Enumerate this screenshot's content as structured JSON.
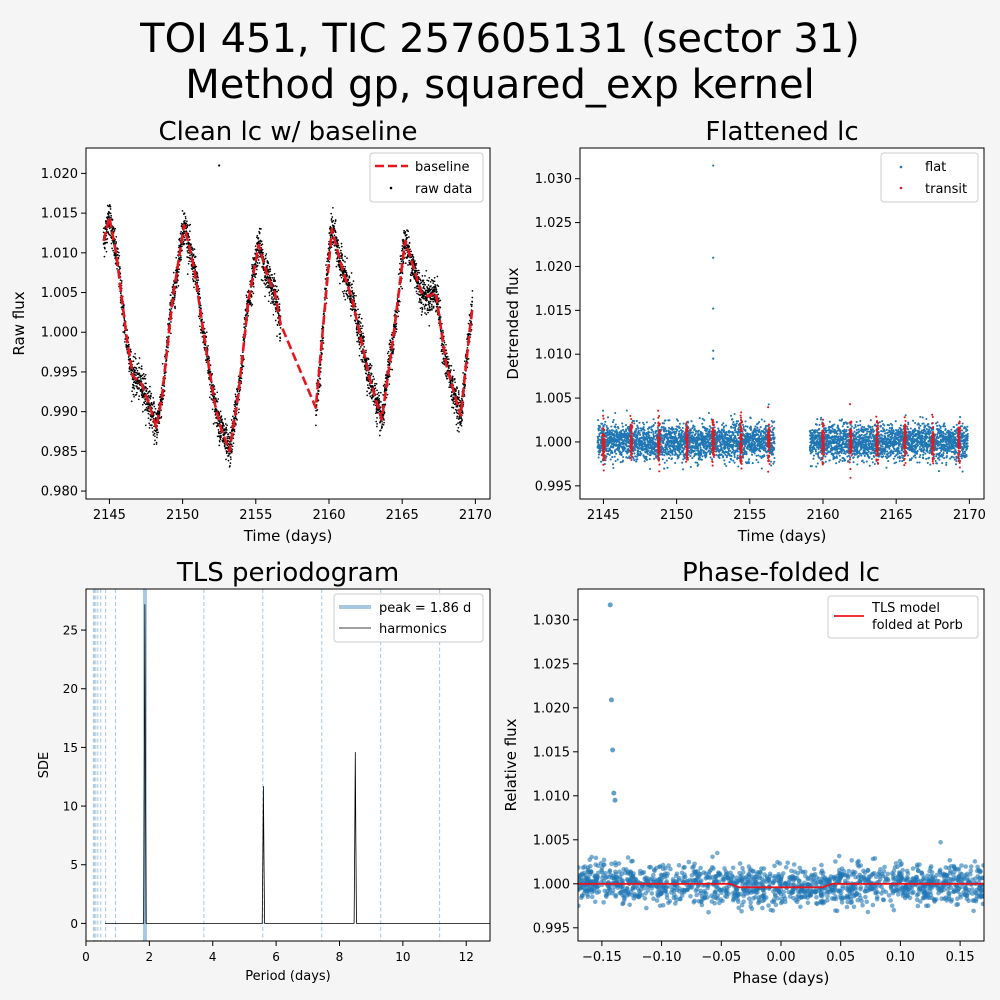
{
  "figure": {
    "title_line1": "TOI 451, TIC 257605131 (sector 31)",
    "title_line2": "Method gp, squared_exp kernel",
    "background": "#f5f5f5"
  },
  "colors": {
    "raw": "#000000",
    "baseline": "#e8141e",
    "flat": "#1f77b4",
    "transit": "#e31a1c",
    "peak": "#a6c8e2",
    "harmonics": "#000000",
    "model": "#e8141e",
    "axes": "#000000"
  },
  "chart_data": [
    {
      "id": "clean",
      "type": "scatter",
      "title": "Clean lc w/ baseline",
      "xlabel": "Time (days)",
      "ylabel": "Raw flux",
      "xlim": [
        2143.4,
        2171.0
      ],
      "ylim": [
        0.979,
        1.0232
      ],
      "xticks": [
        2145,
        2150,
        2155,
        2160,
        2165,
        2170
      ],
      "xtick_labels": [
        "2145",
        "2150",
        "2155",
        "2160",
        "2165",
        "2170"
      ],
      "yticks": [
        0.98,
        0.985,
        0.99,
        0.995,
        1.0,
        1.005,
        1.01,
        1.015,
        1.02
      ],
      "ytick_labels": [
        "0.980",
        "0.985",
        "0.990",
        "0.995",
        "1.000",
        "1.005",
        "1.010",
        "1.015",
        "1.020"
      ],
      "legend": [
        "baseline",
        "raw data"
      ],
      "legend_loc": "upper right",
      "gap": [
        2156.7,
        2159.1
      ],
      "baseline_knots": [
        [
          2144.6,
          1.0115
        ],
        [
          2145.0,
          1.0145
        ],
        [
          2145.5,
          1.0095
        ],
        [
          2146.2,
          0.999
        ],
        [
          2146.6,
          0.9945
        ],
        [
          2147.2,
          0.9935
        ],
        [
          2147.7,
          0.991
        ],
        [
          2148.2,
          0.988
        ],
        [
          2148.6,
          0.992
        ],
        [
          2149.3,
          1.004
        ],
        [
          2150.1,
          1.0135
        ],
        [
          2150.8,
          1.008
        ],
        [
          2151.5,
          0.999
        ],
        [
          2152.2,
          0.991
        ],
        [
          2152.6,
          0.988
        ],
        [
          2153.2,
          0.985
        ],
        [
          2153.8,
          0.992
        ],
        [
          2154.5,
          1.004
        ],
        [
          2155.2,
          1.011
        ],
        [
          2155.8,
          1.007
        ],
        [
          2156.3,
          1.005
        ],
        [
          2156.7,
          1.001
        ],
        [
          2159.1,
          0.9905
        ],
        [
          2160.2,
          1.013
        ],
        [
          2160.9,
          1.008
        ],
        [
          2161.6,
          1.004
        ],
        [
          2162.2,
          0.999
        ],
        [
          2162.8,
          0.994
        ],
        [
          2163.6,
          0.989
        ],
        [
          2164.3,
          0.998
        ],
        [
          2165.2,
          1.0115
        ],
        [
          2165.8,
          1.008
        ],
        [
          2166.3,
          1.005
        ],
        [
          2166.8,
          1.0045
        ],
        [
          2167.3,
          1.005
        ],
        [
          2168.0,
          0.996
        ],
        [
          2168.6,
          0.992
        ],
        [
          2169.0,
          0.9895
        ],
        [
          2169.6,
          1.0
        ],
        [
          2169.8,
          1.003
        ]
      ],
      "outliers": [
        [
          2152.5,
          1.021
        ]
      ]
    },
    {
      "id": "flat",
      "type": "scatter",
      "title": "Flattened lc",
      "xlabel": "Time (days)",
      "ylabel": "Detrended flux",
      "xlim": [
        2143.4,
        2171.0
      ],
      "ylim": [
        0.9935,
        1.0335
      ],
      "xticks": [
        2145,
        2150,
        2155,
        2160,
        2165,
        2170
      ],
      "xtick_labels": [
        "2145",
        "2150",
        "2155",
        "2160",
        "2165",
        "2170"
      ],
      "yticks": [
        0.995,
        1.0,
        1.005,
        1.01,
        1.015,
        1.02,
        1.025,
        1.03
      ],
      "ytick_labels": [
        "0.995",
        "1.000",
        "1.005",
        "1.010",
        "1.015",
        "1.020",
        "1.025",
        "1.030"
      ],
      "legend": [
        "flat",
        "transit"
      ],
      "legend_loc": "upper right",
      "gap": [
        2156.7,
        2159.1
      ],
      "transit_times": [
        2145.0,
        2146.9,
        2148.8,
        2150.7,
        2152.5,
        2154.4,
        2156.3,
        2160.0,
        2161.9,
        2163.7,
        2165.6,
        2167.5,
        2169.3
      ],
      "outliers": [
        [
          2152.5,
          1.0315
        ],
        [
          2152.5,
          1.021
        ],
        [
          2152.5,
          1.0152
        ],
        [
          2152.5,
          1.0104
        ],
        [
          2152.5,
          1.0095
        ]
      ]
    },
    {
      "id": "tls",
      "type": "line",
      "title": "TLS periodogram",
      "xlabel": "Period (days)",
      "ylabel": "SDE",
      "xlim": [
        0,
        12.75
      ],
      "ylim": [
        -1.5,
        28.5
      ],
      "xticks": [
        0,
        2,
        4,
        6,
        8,
        10,
        12
      ],
      "xtick_labels": [
        "0",
        "2",
        "4",
        "6",
        "8",
        "10",
        "12"
      ],
      "yticks": [
        0,
        5,
        10,
        15,
        20,
        25
      ],
      "ytick_labels": [
        "0",
        "5",
        "10",
        "15",
        "20",
        "25"
      ],
      "legend": [
        "peak = 1.86 d",
        "harmonics"
      ],
      "legend_loc": "upper right",
      "peak_period": 1.86,
      "harmonics": [
        0.233,
        0.266,
        0.31,
        0.372,
        0.465,
        0.62,
        0.93,
        3.72,
        5.58,
        7.44,
        9.3,
        11.16
      ],
      "line_start": 0.6,
      "spikes": [
        [
          1.86,
          27.2
        ],
        [
          5.6,
          11.7
        ],
        [
          8.5,
          14.6
        ]
      ]
    },
    {
      "id": "fold",
      "type": "scatter",
      "title": "Phase-folded lc",
      "xlabel": "Phase (days)",
      "ylabel": "Relative flux",
      "xlim": [
        -0.17,
        0.17
      ],
      "ylim": [
        0.9935,
        1.0335
      ],
      "xticks": [
        -0.15,
        -0.1,
        -0.05,
        0.0,
        0.05,
        0.1,
        0.15
      ],
      "xtick_labels": [
        "−0.15",
        "−0.10",
        "−0.05",
        "0.00",
        "0.05",
        "0.10",
        "0.15"
      ],
      "yticks": [
        0.995,
        1.0,
        1.005,
        1.01,
        1.015,
        1.02,
        1.025,
        1.03
      ],
      "ytick_labels": [
        "0.995",
        "1.000",
        "1.005",
        "1.010",
        "1.015",
        "1.020",
        "1.025",
        "1.030"
      ],
      "legend": [
        "TLS model",
        "folded at Porb"
      ],
      "legend_loc": "upper right",
      "model": [
        [
          -0.17,
          1.0
        ],
        [
          -0.043,
          1.0
        ],
        [
          -0.035,
          0.9996
        ],
        [
          0.035,
          0.9996
        ],
        [
          0.043,
          1.0
        ],
        [
          0.17,
          1.0
        ]
      ],
      "outliers": [
        [
          -0.143,
          1.0317
        ],
        [
          -0.142,
          1.0209
        ],
        [
          -0.141,
          1.0152
        ],
        [
          -0.14,
          1.0103
        ],
        [
          -0.139,
          1.0095
        ]
      ]
    }
  ]
}
